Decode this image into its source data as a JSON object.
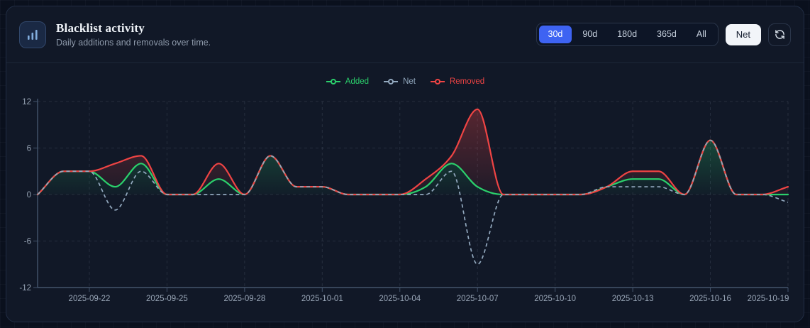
{
  "header": {
    "title": "Blacklist activity",
    "subtitle": "Daily additions and removals over time.",
    "icon": "bar-chart-icon",
    "range_buttons": [
      {
        "label": "30d",
        "active": true
      },
      {
        "label": "90d",
        "active": false
      },
      {
        "label": "180d",
        "active": false
      },
      {
        "label": "365d",
        "active": false
      },
      {
        "label": "All",
        "active": false
      }
    ],
    "net_toggle_label": "Net",
    "refresh_icon": "refresh-icon"
  },
  "colors": {
    "page_bg": "#0a101d",
    "card_bg": "#111827",
    "card_border": "#212d44",
    "accent_blue": "#3e63f2",
    "added_green": "#2bd06c",
    "removed_red": "#ef4444",
    "net_gray": "#93a9bf",
    "axis_line": "#44546c",
    "tick_text": "#97a4b5",
    "grid_dash": "rgba(148,163,184,0.16)"
  },
  "chart_data": {
    "type": "area",
    "title": "Blacklist activity",
    "x": [
      "2025-09-20",
      "2025-09-21",
      "2025-09-22",
      "2025-09-23",
      "2025-09-24",
      "2025-09-25",
      "2025-09-26",
      "2025-09-27",
      "2025-09-28",
      "2025-09-29",
      "2025-09-30",
      "2025-10-01",
      "2025-10-02",
      "2025-10-03",
      "2025-10-04",
      "2025-10-05",
      "2025-10-06",
      "2025-10-07",
      "2025-10-08",
      "2025-10-09",
      "2025-10-10",
      "2025-10-11",
      "2025-10-12",
      "2025-10-13",
      "2025-10-14",
      "2025-10-15",
      "2025-10-16",
      "2025-10-17",
      "2025-10-18",
      "2025-10-19"
    ],
    "series": [
      {
        "name": "Added",
        "color": "#2bd06c",
        "style": "solid-area",
        "values": [
          0,
          3,
          3,
          1,
          4,
          0,
          0,
          2,
          0,
          5,
          1,
          1,
          0,
          0,
          0,
          1,
          4,
          1,
          0,
          0,
          0,
          0,
          1,
          2,
          2,
          0,
          7,
          0,
          0,
          0
        ]
      },
      {
        "name": "Net",
        "color": "#93a9bf",
        "style": "dashed-line",
        "values": [
          0,
          3,
          3,
          -2,
          3,
          0,
          0,
          0,
          0,
          5,
          1,
          1,
          0,
          0,
          0,
          0,
          3,
          -9,
          0,
          0,
          0,
          0,
          1,
          1,
          1,
          0,
          7,
          0,
          0,
          -1
        ]
      },
      {
        "name": "Removed",
        "color": "#ef4444",
        "style": "solid-area-stacked-on-added",
        "values": [
          0,
          0,
          0,
          3,
          1,
          0,
          0,
          2,
          0,
          0,
          0,
          0,
          0,
          0,
          0,
          1,
          1,
          10,
          0,
          0,
          0,
          0,
          0,
          1,
          1,
          0,
          0,
          0,
          0,
          1
        ]
      }
    ],
    "stacking": "red line = Added + Removed; dashed = Net (Added - Removed)",
    "ylim": [
      -12,
      12
    ],
    "yticks": [
      12,
      6,
      0,
      -6,
      -12
    ],
    "xticks": [
      "2025-09-22",
      "2025-09-25",
      "2025-09-28",
      "2025-10-01",
      "2025-10-04",
      "2025-10-07",
      "2025-10-10",
      "2025-10-13",
      "2025-10-16",
      "2025-10-19"
    ],
    "grid": true,
    "legend_position": "top-center",
    "legend": [
      "Added",
      "Net",
      "Removed"
    ]
  }
}
